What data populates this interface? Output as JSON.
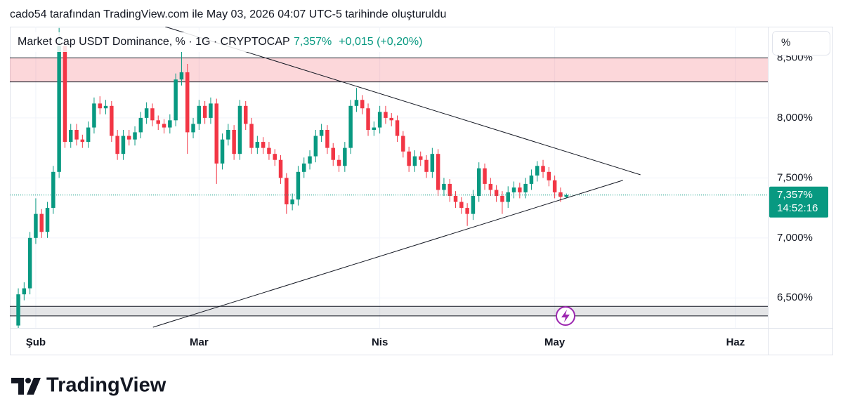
{
  "header": "cado54 tarafından TradingView.com ile May 03, 2026 04:07 UTC-5 tarihinde oluşturuldu",
  "logo": "TradingView",
  "chart_data": {
    "type": "candlestick",
    "title": "Market Cap USDT Dominance, % · 1G · CRYPTOCAP",
    "last_value_label": "7,357%",
    "change_label": "+0,015 (+0,20%)",
    "countdown": "14:52:16",
    "unit_button": "%",
    "up_color": "#089981",
    "down_color": "#f23645",
    "grid": true,
    "xlim": [
      -1.45,
      128.55
    ],
    "xticks": [
      {
        "value": 3,
        "label": "Şub"
      },
      {
        "value": 31,
        "label": "Mar"
      },
      {
        "value": 62,
        "label": "Nis"
      },
      {
        "value": 92,
        "label": "May"
      },
      {
        "value": 123,
        "label": "Haz"
      }
    ],
    "ylim": [
      6.25,
      8.76
    ],
    "yticks": [
      {
        "value": 6.5,
        "label": "6,500%"
      },
      {
        "value": 7,
        "label": "7,000%"
      },
      {
        "value": 7.5,
        "label": "7,500%"
      },
      {
        "value": 8,
        "label": "8,000%"
      },
      {
        "value": 8.5,
        "label": "8,500%"
      }
    ],
    "zones": [
      {
        "color": "#f23645",
        "range": [
          8.3,
          8.5
        ]
      },
      {
        "color": "#787b86",
        "range": [
          6.35,
          6.43
        ]
      }
    ],
    "trend_lines": [
      {
        "from": [
          25.2,
          8.76
        ],
        "to": [
          106.7,
          7.526
        ]
      },
      {
        "from": [
          23.1,
          6.256
        ],
        "to": [
          103.7,
          7.48
        ]
      }
    ],
    "open": [
      6.27,
      6.53,
      6.58,
      7.0,
      7.2,
      7.05,
      7.25,
      7.55,
      8.6,
      7.8,
      7.9,
      7.82,
      7.8,
      7.92,
      8.12,
      8.08,
      8.1,
      7.85,
      7.7,
      7.85,
      7.82,
      7.88,
      8.0,
      8.08,
      7.98,
      7.95,
      7.92,
      7.98,
      8.32,
      8.38,
      7.88,
      7.95,
      8.1,
      8.0,
      8.12,
      7.62,
      7.82,
      7.9,
      7.7,
      8.1,
      7.95,
      7.75,
      7.8,
      7.75,
      7.7,
      7.65,
      7.5,
      7.28,
      7.32,
      7.55,
      7.62,
      7.68,
      7.85,
      7.9,
      7.75,
      7.65,
      7.6,
      7.75,
      8.1,
      8.15,
      8.08,
      7.9,
      7.92,
      8.05,
      8.0,
      7.98,
      7.85,
      7.72,
      7.6,
      7.68,
      7.65,
      7.55,
      7.7,
      7.4,
      7.45,
      7.35,
      7.3,
      7.25,
      7.2,
      7.35,
      7.58,
      7.45,
      7.4,
      7.35,
      7.3,
      7.38,
      7.42,
      7.38,
      7.45,
      7.52,
      7.6,
      7.55,
      7.48,
      7.38,
      7.342
    ],
    "high": [
      6.58,
      6.63,
      7.05,
      7.33,
      7.24,
      7.3,
      7.6,
      8.75,
      8.65,
      7.95,
      7.95,
      7.86,
      7.97,
      8.17,
      8.18,
      8.15,
      8.14,
      7.9,
      7.9,
      7.9,
      7.93,
      8.05,
      8.13,
      8.12,
      8.02,
      7.99,
      8.03,
      8.37,
      8.55,
      8.45,
      8.0,
      8.15,
      8.14,
      8.17,
      8.16,
      7.87,
      7.95,
      7.94,
      8.15,
      8.14,
      8.0,
      7.85,
      7.84,
      7.8,
      7.74,
      7.69,
      7.54,
      7.37,
      7.6,
      7.67,
      7.73,
      7.9,
      7.95,
      7.94,
      7.79,
      7.69,
      7.8,
      8.15,
      8.25,
      8.19,
      8.12,
      7.97,
      8.1,
      8.1,
      8.04,
      8.02,
      7.89,
      7.76,
      7.73,
      7.72,
      7.69,
      7.75,
      7.74,
      7.5,
      7.49,
      7.39,
      7.34,
      7.29,
      7.4,
      7.63,
      7.62,
      7.5,
      7.44,
      7.39,
      7.43,
      7.47,
      7.46,
      7.5,
      7.57,
      7.64,
      7.65,
      7.59,
      7.52,
      7.42,
      7.37
    ],
    "low": [
      6.25,
      6.48,
      6.53,
      6.95,
      7.0,
      7.0,
      7.2,
      7.5,
      7.75,
      7.75,
      7.77,
      7.75,
      7.75,
      7.87,
      8.03,
      8.03,
      7.8,
      7.65,
      7.65,
      7.77,
      7.77,
      7.83,
      7.95,
      7.93,
      7.9,
      7.87,
      7.87,
      7.93,
      8.27,
      7.7,
      7.83,
      7.9,
      7.95,
      7.95,
      7.45,
      7.57,
      7.77,
      7.65,
      7.65,
      7.9,
      7.7,
      7.7,
      7.7,
      7.65,
      7.6,
      7.45,
      7.2,
      7.23,
      7.27,
      7.5,
      7.57,
      7.63,
      7.8,
      7.7,
      7.6,
      7.55,
      7.55,
      7.7,
      8.05,
      8.03,
      7.85,
      7.85,
      7.87,
      7.95,
      7.93,
      7.8,
      7.67,
      7.55,
      7.55,
      7.6,
      7.5,
      7.5,
      7.35,
      7.35,
      7.3,
      7.25,
      7.2,
      7.1,
      7.15,
      7.3,
      7.4,
      7.35,
      7.3,
      7.2,
      7.25,
      7.33,
      7.33,
      7.33,
      7.4,
      7.47,
      7.5,
      7.43,
      7.33,
      7.3,
      7.33
    ],
    "close": [
      6.53,
      6.58,
      7.0,
      7.2,
      7.05,
      7.25,
      7.55,
      8.6,
      7.8,
      7.9,
      7.82,
      7.8,
      7.92,
      8.12,
      8.08,
      8.1,
      7.85,
      7.7,
      7.85,
      7.82,
      7.88,
      8.0,
      8.08,
      7.98,
      7.95,
      7.92,
      7.98,
      8.32,
      8.38,
      7.88,
      7.95,
      8.1,
      8.0,
      8.12,
      7.62,
      7.82,
      7.9,
      7.7,
      8.1,
      7.95,
      7.75,
      7.8,
      7.75,
      7.7,
      7.65,
      7.5,
      7.28,
      7.32,
      7.55,
      7.62,
      7.68,
      7.85,
      7.9,
      7.75,
      7.65,
      7.6,
      7.75,
      8.1,
      8.15,
      8.08,
      7.9,
      7.92,
      8.05,
      8.0,
      7.98,
      7.85,
      7.72,
      7.6,
      7.68,
      7.65,
      7.55,
      7.7,
      7.4,
      7.45,
      7.35,
      7.3,
      7.25,
      7.2,
      7.35,
      7.58,
      7.45,
      7.4,
      7.35,
      7.3,
      7.38,
      7.42,
      7.38,
      7.45,
      7.52,
      7.6,
      7.55,
      7.48,
      7.38,
      7.342,
      7.357
    ]
  }
}
